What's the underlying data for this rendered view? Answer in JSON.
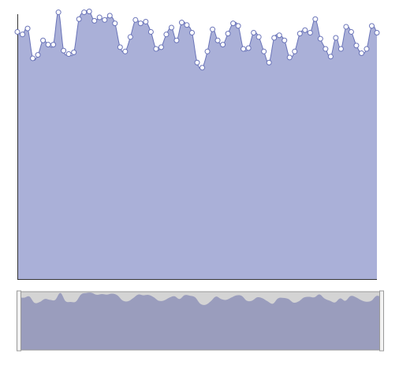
{
  "chart_data": {
    "type": "area",
    "x": [
      0,
      1,
      2,
      3,
      4,
      5,
      6,
      7,
      8,
      9,
      10,
      11,
      12,
      13,
      14,
      15,
      16,
      17,
      18,
      19,
      20,
      21,
      22,
      23,
      24,
      25,
      26,
      27,
      28,
      29,
      30,
      31,
      32,
      33,
      34,
      35,
      36,
      37,
      38,
      39,
      40,
      41,
      42,
      43,
      44,
      45,
      46,
      47,
      48,
      49,
      50,
      51,
      52,
      53,
      54,
      55,
      56,
      57,
      58,
      59,
      60,
      61,
      62,
      63,
      64,
      65,
      66,
      67,
      68,
      69,
      70
    ],
    "series": [
      {
        "values": [
          290,
          287,
          294,
          259,
          263,
          280,
          275,
          275,
          313,
          268,
          264,
          266,
          305,
          313,
          314,
          303,
          307,
          304,
          309,
          300,
          272,
          267,
          284,
          304,
          300,
          302,
          290,
          270,
          272,
          287,
          295,
          280,
          301,
          298,
          289,
          254,
          248,
          267,
          293,
          280,
          275,
          288,
          300,
          297,
          270,
          271,
          289,
          284,
          267,
          254,
          283,
          286,
          280,
          260,
          267,
          288,
          292,
          289,
          305,
          282,
          270,
          261,
          283,
          270,
          296,
          290,
          274,
          265,
          270,
          297,
          289
        ]
      }
    ],
    "ylim": [
      0,
      320
    ],
    "navigator": {
      "selected_range_x": [
        0,
        70
      ]
    },
    "colors": {
      "area_fill": "#aab0d8",
      "line": "#6973b8",
      "marker_fill": "#ffffff",
      "marker_stroke": "#6973b8",
      "navigator_bg": "#d4d4d4",
      "navigator_area": "#9a9dbd",
      "axis": "#333333"
    }
  }
}
